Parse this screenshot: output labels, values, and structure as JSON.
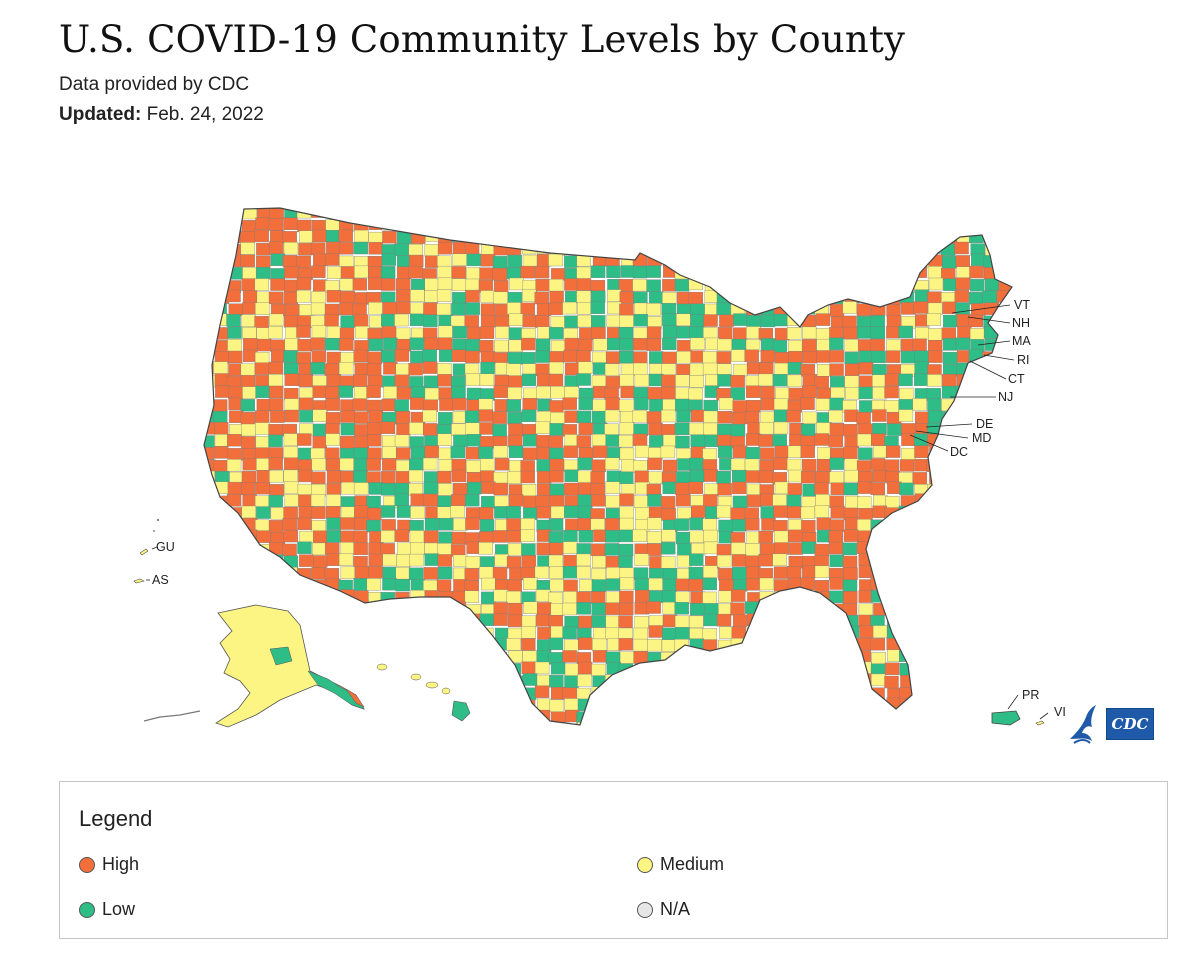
{
  "header": {
    "title": "U.S. COVID-19 Community Levels by County",
    "subtitle": "Data provided by CDC",
    "updated_label": "Updated:",
    "updated_value": "Feb. 24, 2022"
  },
  "map": {
    "labels": {
      "vt": "VT",
      "nh": "NH",
      "ma": "MA",
      "ri": "RI",
      "ct": "CT",
      "nj": "NJ",
      "de": "DE",
      "md": "MD",
      "dc": "DC",
      "gu": "GU",
      "as": "AS",
      "pr": "PR",
      "vi": "VI"
    },
    "logo_text": "CDC"
  },
  "colors": {
    "high": "#f26f3c",
    "medium": "#fcf483",
    "low": "#2ebd87",
    "na": "#e6e6e6",
    "border": "#555555"
  },
  "legend": {
    "title": "Legend",
    "items": [
      {
        "label": "High",
        "color": "#f26f3c"
      },
      {
        "label": "Medium",
        "color": "#fcf483"
      },
      {
        "label": "Low",
        "color": "#2ebd87"
      },
      {
        "label": "N/A",
        "color": "#e6e6e6"
      }
    ]
  }
}
